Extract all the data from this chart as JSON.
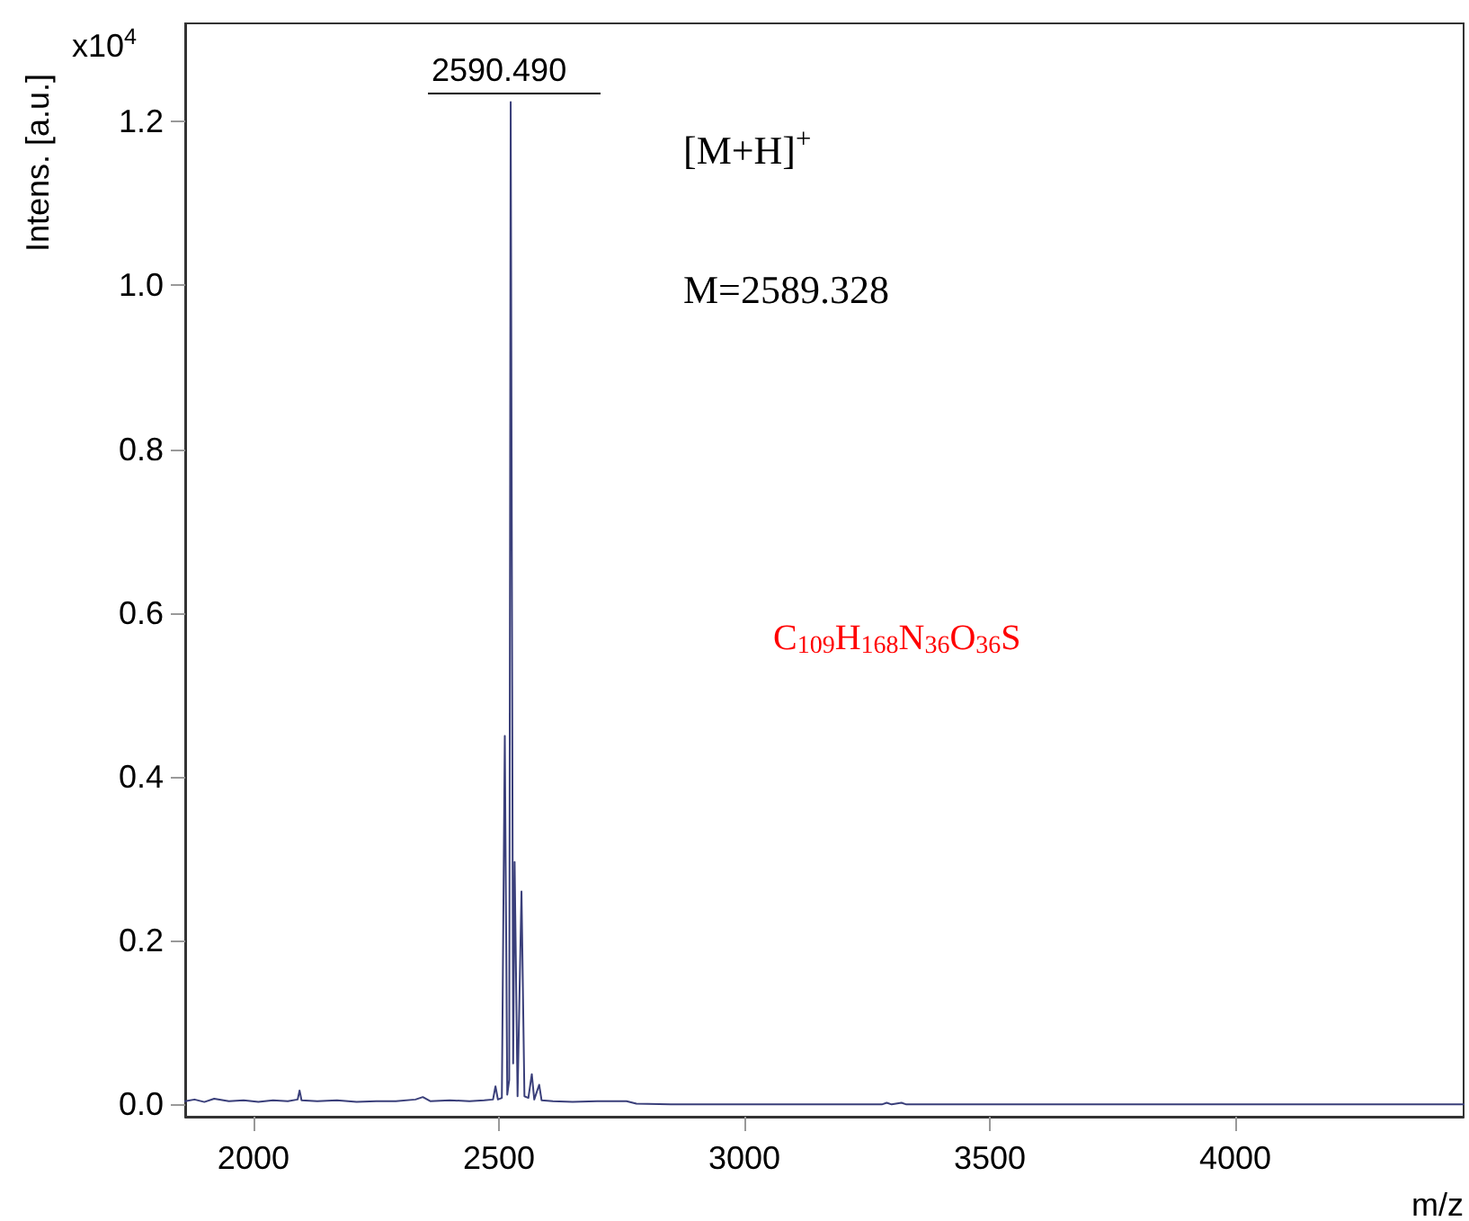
{
  "chart_data": {
    "type": "line",
    "ylabel": "Intens. [a.u.]",
    "xlabel": "m/z",
    "annotations": [
      "x10$^{4}$",
      "2590.490",
      "[M+H]$^{+}$",
      "M=2589.328",
      "C$_{109}$H$_{168}$N$_{36}$O$_{36}$S"
    ],
    "xlim": [
      1861,
      4465
    ],
    "xticks": [
      2000,
      2500,
      3000,
      3500,
      4000
    ],
    "ylim": [
      -0.015,
      1.32
    ],
    "yticks": [
      {
        "value": 0,
        "label": "0.0"
      },
      {
        "value": 0.2,
        "label": "0.2"
      },
      {
        "value": 0.4,
        "label": "0.4"
      },
      {
        "value": 0.6,
        "label": "0.6"
      },
      {
        "value": 0.8,
        "label": "0.8"
      },
      {
        "value": 1,
        "label": "1.0"
      },
      {
        "value": 1.2,
        "label": "1.2"
      }
    ],
    "grid": false,
    "marker": "none",
    "line_style": "solid",
    "series": [
      {
        "color": "#3a3f7a",
        "x": [
          1861,
          1880,
          1900,
          1920,
          1950,
          1980,
          2010,
          2040,
          2070,
          2090,
          2094,
          2098,
          2130,
          2170,
          2210,
          2250,
          2290,
          2330,
          2345,
          2360,
          2400,
          2440,
          2470,
          2488,
          2493,
          2498,
          2506,
          2512,
          2517,
          2521,
          2524,
          2529,
          2532,
          2538,
          2546,
          2552,
          2560,
          2567,
          2572,
          2582,
          2587,
          2610,
          2650,
          2700,
          2760,
          2780,
          2850,
          3000,
          3280,
          3290,
          3300,
          3320,
          3330,
          3600,
          4000,
          4465
        ],
        "values": [
          0.004,
          0.006,
          0.003,
          0.007,
          0.004,
          0.005,
          0.003,
          0.005,
          0.004,
          0.006,
          0.017,
          0.005,
          0.004,
          0.005,
          0.003,
          0.004,
          0.004,
          0.006,
          0.009,
          0.004,
          0.005,
          0.004,
          0.005,
          0.006,
          0.022,
          0.006,
          0.008,
          0.45,
          0.012,
          0.03,
          1.224,
          0.05,
          0.296,
          0.01,
          0.26,
          0.01,
          0.008,
          0.037,
          0.006,
          0.024,
          0.005,
          0.004,
          0.003,
          0.004,
          0.004,
          0.001,
          0,
          0,
          0,
          0.002,
          0,
          0.002,
          0,
          0,
          0,
          0
        ]
      }
    ]
  }
}
